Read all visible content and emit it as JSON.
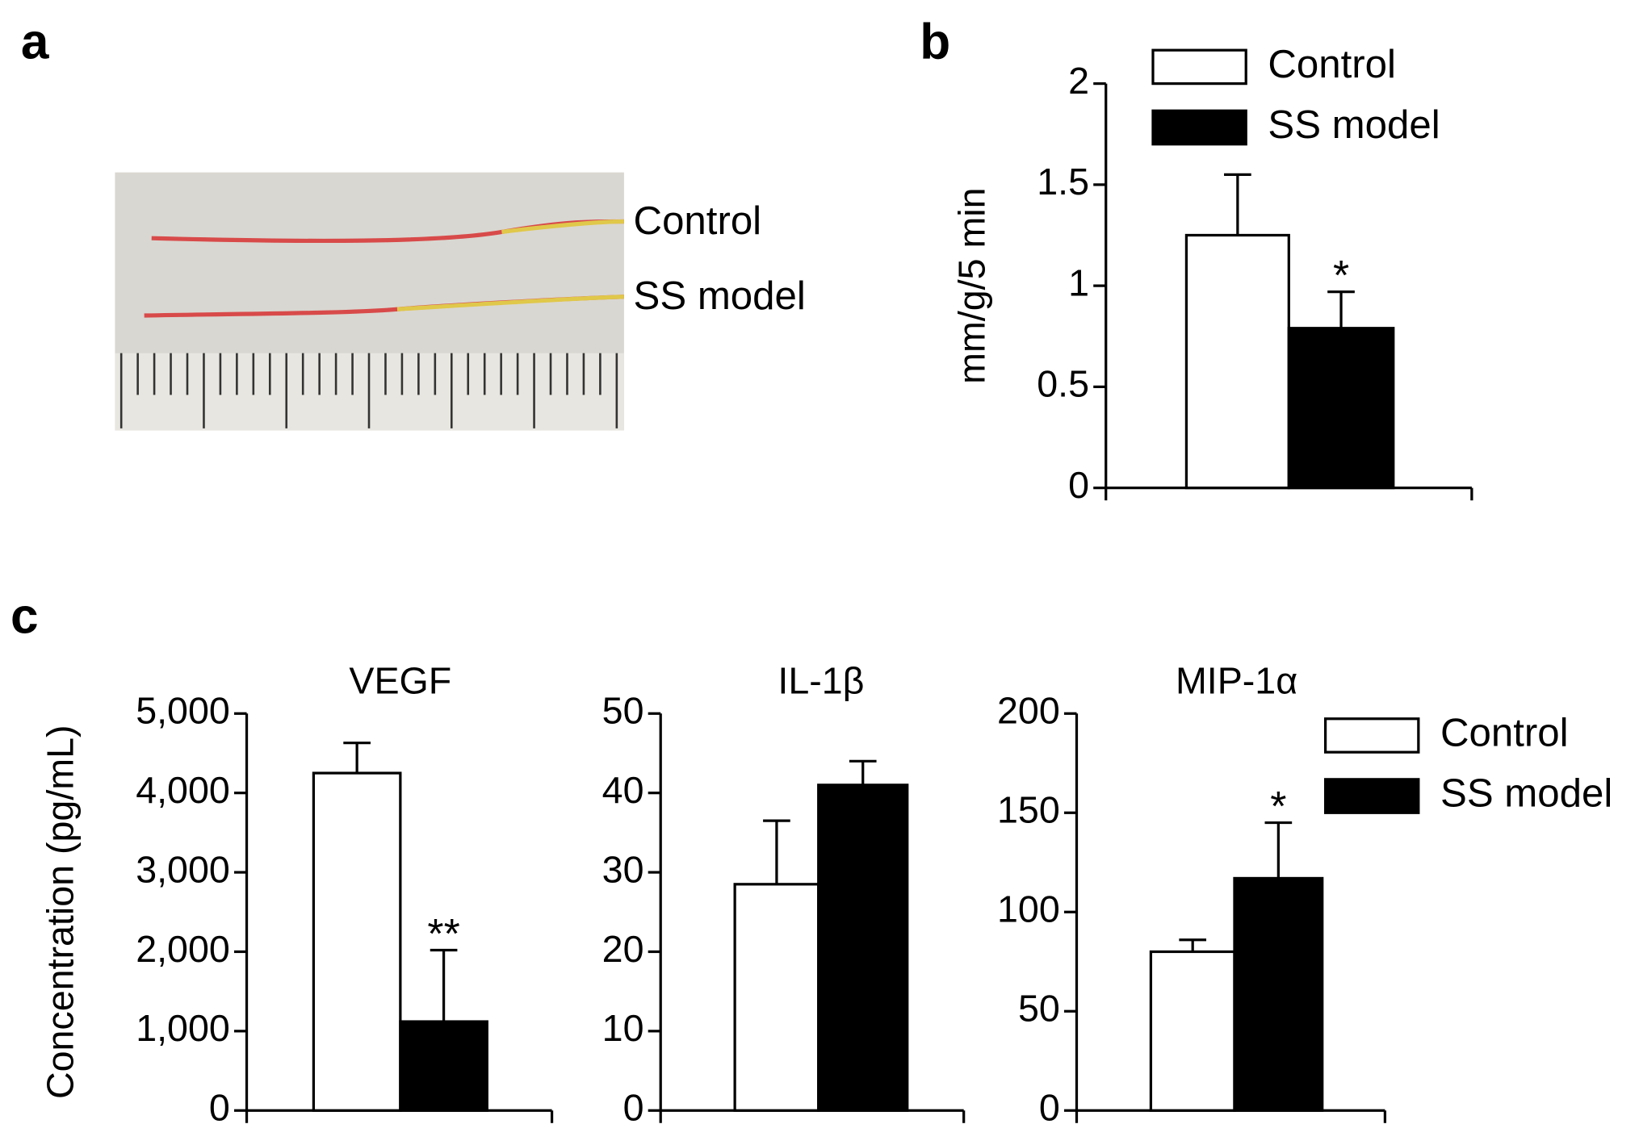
{
  "photo": {
    "panel": "a",
    "labels": [
      "Control",
      "SS model"
    ]
  },
  "chart_data": [
    {
      "type": "bar",
      "panel": "b",
      "ylabel": "mm/g/5 min",
      "categories": [
        null
      ],
      "ylim": [
        0,
        2
      ],
      "yticks": [
        0,
        0.5,
        1,
        1.5,
        2
      ],
      "legend": "upper left",
      "series": [
        {
          "name": "Control",
          "color": "#ffffff",
          "values": [
            1.25
          ],
          "errors": [
            0.3
          ]
        },
        {
          "name": "SS model",
          "color": "#000000",
          "values": [
            0.79
          ],
          "errors": [
            0.18
          ],
          "annotations": [
            "*"
          ]
        }
      ]
    },
    {
      "type": "bar",
      "panel": "c",
      "title": "VEGF",
      "ylabel": "Concentration (pg/mL)",
      "categories": [
        null
      ],
      "ylim": [
        0,
        5000
      ],
      "yticks": [
        0,
        {
          "value": 1000,
          "label": "1,000"
        },
        {
          "value": 2000,
          "label": "2,000"
        },
        {
          "value": 3000,
          "label": "3,000"
        },
        {
          "value": 4000,
          "label": "4,000"
        },
        {
          "value": 5000,
          "label": "5,000"
        }
      ],
      "series": [
        {
          "name": "Control",
          "color": "#ffffff",
          "values": [
            4250
          ],
          "errors": [
            380
          ]
        },
        {
          "name": "SS model",
          "color": "#000000",
          "values": [
            1120
          ],
          "errors": [
            900
          ],
          "annotations": [
            "**"
          ]
        }
      ]
    },
    {
      "type": "bar",
      "title": "IL-1β",
      "categories": [
        null
      ],
      "ylim": [
        0,
        50
      ],
      "yticks": [
        0,
        10,
        20,
        30,
        40,
        50
      ],
      "series": [
        {
          "name": "Control",
          "color": "#ffffff",
          "values": [
            28.5
          ],
          "errors": [
            8
          ]
        },
        {
          "name": "SS model",
          "color": "#000000",
          "values": [
            41
          ],
          "errors": [
            3
          ]
        }
      ]
    },
    {
      "type": "bar",
      "title": "MIP-1α",
      "categories": [
        null
      ],
      "ylim": [
        0,
        200
      ],
      "yticks": [
        0,
        50,
        100,
        150,
        200
      ],
      "legend": "upper right",
      "series": [
        {
          "name": "Control",
          "color": "#ffffff",
          "values": [
            80
          ],
          "errors": [
            6
          ]
        },
        {
          "name": "SS model",
          "color": "#000000",
          "values": [
            117
          ],
          "errors": [
            28
          ],
          "annotations": [
            "*"
          ]
        }
      ]
    }
  ]
}
